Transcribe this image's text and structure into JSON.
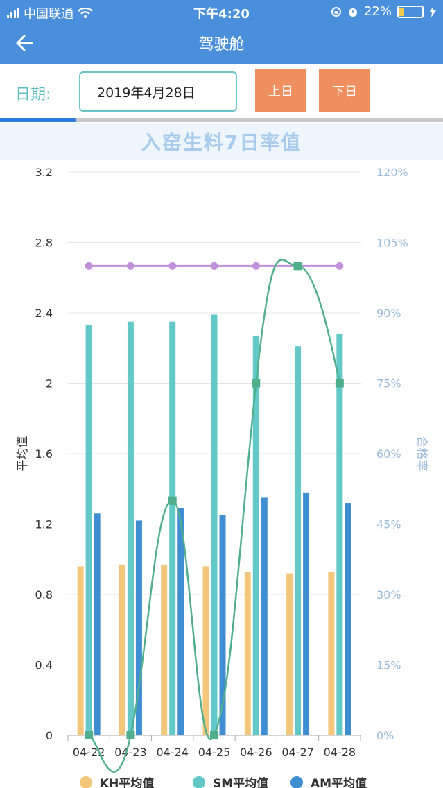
{
  "status_bar": {
    "carrier": "中国联通",
    "time": "下午4:20",
    "battery": "22%",
    "battery_level": 0.22
  },
  "nav": {
    "title": "驾驶舱",
    "back_icon": "arrow-left-icon"
  },
  "date_bar": {
    "label": "日期:",
    "date_value": "2019年4月28日",
    "prev_label": "上日",
    "next_label": "下日"
  },
  "progress_fraction": 0.17,
  "colors": {
    "primary": "#4a8fdc",
    "teal": "#6cc5c7",
    "orange_button": "#ee8f5d",
    "kh": "#f3c77b",
    "sm": "#63c8c8",
    "am": "#3f8ed2",
    "rate_line": "#4faf8c",
    "target_line": "#c191dc"
  },
  "chart_title": "入窑生料7日率值",
  "chart_data": {
    "type": "bar",
    "categories": [
      "04-22",
      "04-23",
      "04-24",
      "04-25",
      "04-26",
      "04-27",
      "04-28"
    ],
    "series": [
      {
        "name": "KH平均值",
        "type": "bar",
        "axis": "left",
        "values": [
          0.96,
          0.97,
          0.97,
          0.96,
          0.93,
          0.92,
          0.93
        ]
      },
      {
        "name": "SM平均值",
        "type": "bar",
        "axis": "left",
        "values": [
          2.33,
          2.35,
          2.35,
          2.39,
          2.27,
          2.21,
          2.28
        ]
      },
      {
        "name": "AM平均值",
        "type": "bar",
        "axis": "left",
        "values": [
          1.26,
          1.22,
          1.29,
          1.25,
          1.35,
          1.38,
          1.32
        ]
      },
      {
        "name": "",
        "type": "line",
        "axis": "right",
        "smooth": true,
        "values": [
          0,
          0,
          50,
          0,
          75,
          100,
          75
        ]
      },
      {
        "name": "",
        "type": "line",
        "axis": "right",
        "values": [
          100,
          100,
          100,
          100,
          100,
          100,
          100
        ]
      }
    ],
    "ylabel": "平均值",
    "ylabel_right": "合格率",
    "ylim": [
      0,
      3.2
    ],
    "yticks": [
      "0",
      "0.4",
      "0.8",
      "1.2",
      "1.6",
      "2",
      "2.4",
      "2.8",
      "3.2"
    ],
    "ylim_right": [
      0,
      120
    ],
    "yticks_right": [
      "0%",
      "15%",
      "30%",
      "45%",
      "60%",
      "75%",
      "90%",
      "105%",
      "120%"
    ],
    "grid": true,
    "legend": "bottom"
  }
}
